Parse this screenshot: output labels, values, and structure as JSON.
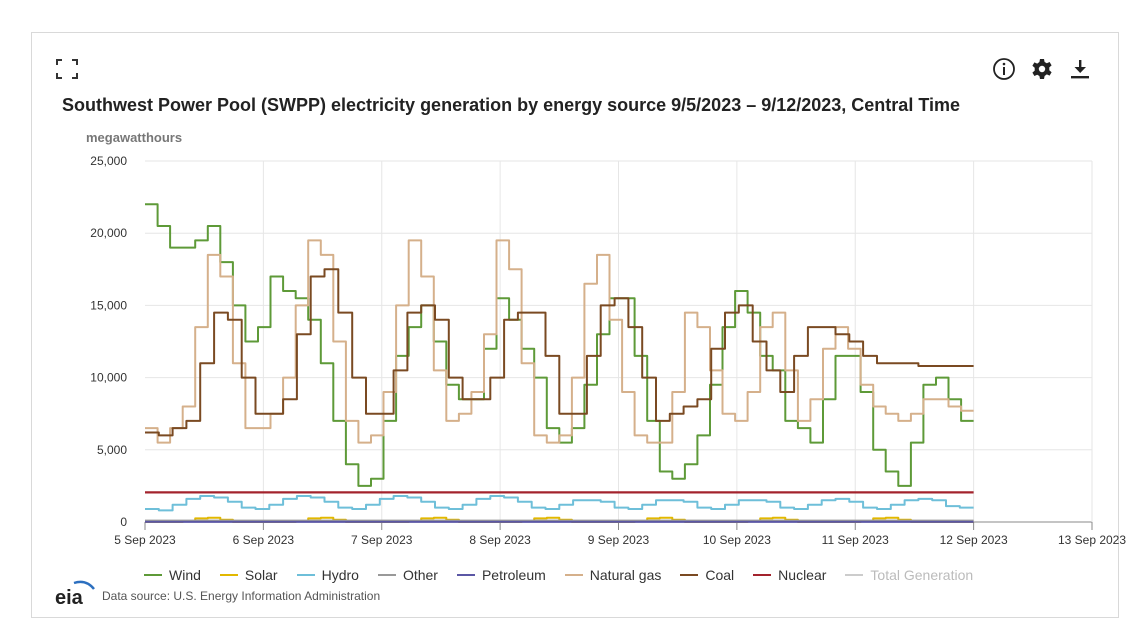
{
  "chart_data": {
    "type": "line",
    "title": "Southwest Power Pool (SWPP) electricity generation by energy source 9/5/2023 – 9/12/2023, Central Time",
    "ylabel": "megawatthours",
    "ylim": [
      0,
      25000
    ],
    "y_ticks": [
      "0",
      "5,000",
      "10,000",
      "15,000",
      "20,000",
      "25,000"
    ],
    "x_ticks": [
      "5 Sep 2023",
      "6 Sep 2023",
      "7 Sep 2023",
      "8 Sep 2023",
      "9 Sep 2023",
      "10 Sep 2023",
      "11 Sep 2023",
      "12 Sep 2023",
      "13 Sep 2023"
    ],
    "x_start": "2023-09-05 00:00",
    "x_end": "2023-09-13 00:00",
    "x_step_hours": 3,
    "grid": true,
    "legend_position": "bottom",
    "series": [
      {
        "name": "Wind",
        "color": "#5e9a38",
        "values": [
          22000,
          20500,
          19000,
          19000,
          19500,
          20500,
          18000,
          15000,
          12500,
          13500,
          17000,
          16000,
          15500,
          14000,
          11000,
          7000,
          4000,
          2500,
          3000,
          7000,
          11500,
          13500,
          15000,
          12500,
          9500,
          8500,
          8500,
          12000,
          15500,
          14000,
          12000,
          10000,
          6500,
          5500,
          6500,
          9500,
          13000,
          15500,
          15500,
          11500,
          7000,
          3500,
          3000,
          4000,
          6000,
          9500,
          13500,
          16000,
          14500,
          11500,
          10500,
          7000,
          6500,
          5500,
          8500,
          11500,
          11500,
          9000,
          5000,
          3500,
          2500,
          5500,
          9500,
          10000,
          8500,
          7000
        ]
      },
      {
        "name": "Solar",
        "color": "#e2b800",
        "values": [
          0,
          0,
          0,
          50,
          250,
          300,
          150,
          0,
          0,
          0,
          0,
          0,
          50,
          250,
          300,
          150,
          0,
          0,
          0,
          0,
          0,
          50,
          250,
          300,
          150,
          0,
          0,
          0,
          0,
          0,
          50,
          250,
          300,
          150,
          0,
          0,
          0,
          0,
          0,
          50,
          250,
          300,
          150,
          0,
          0,
          0,
          0,
          0,
          50,
          250,
          300,
          150,
          0,
          0,
          0,
          0,
          0,
          50,
          250,
          300,
          150,
          0,
          0,
          0,
          0,
          0
        ]
      },
      {
        "name": "Hydro",
        "color": "#6ebfd9",
        "values": [
          900,
          800,
          1200,
          1600,
          1800,
          1700,
          1400,
          1000,
          900,
          1200,
          1600,
          1800,
          1700,
          1400,
          1000,
          900,
          1200,
          1600,
          1800,
          1700,
          1400,
          1000,
          900,
          1200,
          1600,
          1800,
          1700,
          1400,
          1000,
          900,
          1200,
          1500,
          1500,
          1400,
          1000,
          900,
          1200,
          1500,
          1500,
          1400,
          1000,
          900,
          1200,
          1500,
          1500,
          1400,
          1000,
          900,
          1200,
          1500,
          1600,
          1400,
          1000,
          900,
          1200,
          1500,
          1600,
          1500,
          1100,
          1000
        ]
      },
      {
        "name": "Other",
        "color": "#999999",
        "values": [
          100,
          100,
          100,
          100,
          100,
          100,
          100,
          100,
          100,
          100,
          100,
          100,
          100,
          100,
          100,
          100,
          100,
          100,
          100,
          100,
          100,
          100,
          100,
          100,
          100,
          100,
          100,
          100,
          100,
          100,
          100,
          100,
          100,
          100,
          100,
          100,
          100,
          100,
          100,
          100,
          100,
          100,
          100,
          100,
          100,
          100,
          100,
          100,
          100,
          100,
          100,
          100,
          100,
          100,
          100,
          100,
          100,
          100,
          100,
          100
        ]
      },
      {
        "name": "Petroleum",
        "color": "#5b57a5",
        "values": [
          10,
          10,
          10,
          10,
          10,
          10,
          10,
          10,
          10,
          10,
          10,
          10,
          10,
          10,
          10,
          10,
          10,
          10,
          10,
          10,
          10,
          10,
          10,
          10,
          10,
          10,
          10,
          10,
          10,
          10,
          10,
          10,
          10,
          10,
          10,
          10,
          10,
          10,
          10,
          10,
          10,
          10,
          10,
          10,
          10,
          10,
          10,
          10,
          10,
          10,
          10,
          10,
          10,
          10,
          10,
          10,
          10,
          10,
          10,
          10
        ]
      },
      {
        "name": "Natural gas",
        "color": "#d5b08b",
        "values": [
          6500,
          5500,
          6500,
          8000,
          13500,
          18500,
          17000,
          11000,
          6500,
          6500,
          7500,
          10000,
          15000,
          19500,
          18500,
          12500,
          7000,
          5500,
          6000,
          9000,
          15000,
          19500,
          17000,
          10500,
          7000,
          7500,
          9000,
          13000,
          19500,
          17500,
          11000,
          6000,
          5500,
          6000,
          10000,
          16500,
          18500,
          14000,
          9000,
          6000,
          5500,
          5500,
          9000,
          14500,
          13500,
          10500,
          7500,
          7000,
          9000,
          13500,
          14500,
          10500,
          7000,
          8500,
          12000,
          13500,
          12000,
          9500,
          8000,
          7500,
          7000,
          7500,
          8500,
          8500,
          8000,
          7700
        ]
      },
      {
        "name": "Coal",
        "color": "#7a4a22",
        "values": [
          6200,
          6000,
          6500,
          7000,
          11000,
          14500,
          14000,
          10000,
          7500,
          7500,
          8500,
          13000,
          17000,
          17500,
          14500,
          10000,
          7500,
          7500,
          10500,
          14500,
          15000,
          14000,
          10000,
          8500,
          8500,
          10000,
          14000,
          14500,
          14500,
          11500,
          7500,
          7500,
          11500,
          15000,
          15500,
          13500,
          10000,
          7000,
          7500,
          8000,
          8500,
          12000,
          14500,
          15000,
          12500,
          10500,
          9000,
          11500,
          13500,
          13500,
          13000,
          12500,
          11500,
          11000,
          11000,
          11000,
          10800,
          10800,
          10800,
          10800
        ]
      },
      {
        "name": "Nuclear",
        "color": "#a3232d",
        "values": [
          2050,
          2050,
          2050,
          2050,
          2050,
          2050,
          2050,
          2050,
          2050,
          2050,
          2050,
          2050,
          2050,
          2050,
          2050,
          2050,
          2050,
          2050,
          2050,
          2050,
          2050,
          2050,
          2050,
          2050,
          2050,
          2050,
          2050,
          2050,
          2050,
          2050,
          2050,
          2050,
          2050,
          2050,
          2050,
          2050,
          2050,
          2050,
          2050,
          2050,
          2050,
          2050,
          2050,
          2050,
          2050,
          2050,
          2050,
          2050,
          2050,
          2050,
          2050,
          2050,
          2050,
          2050,
          2050,
          2050,
          2050,
          2050,
          2050,
          2050
        ]
      },
      {
        "name": "Total Generation",
        "color": "#cccccc",
        "visible": false,
        "values": []
      }
    ]
  },
  "footer": {
    "source": "Data source: U.S. Energy Information Administration",
    "logo_text": "eia"
  },
  "icons": {
    "expand": "expand-icon",
    "info": "info-icon",
    "settings": "gear-icon",
    "download": "download-icon"
  }
}
